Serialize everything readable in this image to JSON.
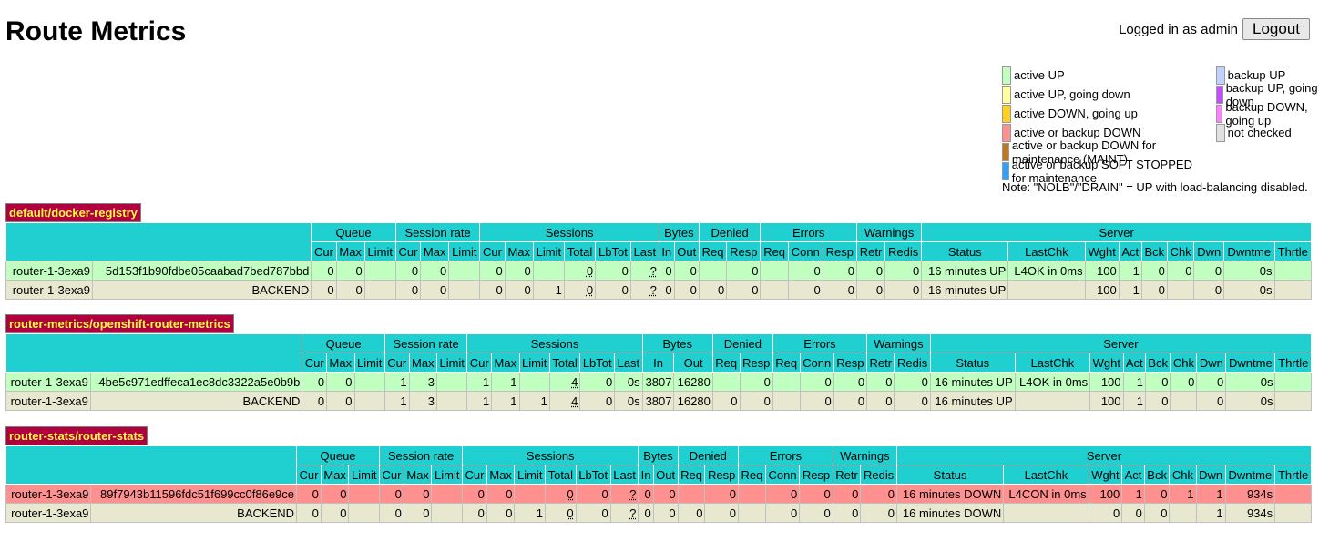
{
  "header": {
    "title": "Route Metrics",
    "login_text": "Logged in as admin",
    "logout_label": "Logout"
  },
  "legend": {
    "left": [
      {
        "label": "active UP",
        "color": "#c0ffc0"
      },
      {
        "label": "active UP, going down",
        "color": "#ffffa0"
      },
      {
        "label": "active DOWN, going up",
        "color": "#ffd020"
      },
      {
        "label": "active or backup DOWN",
        "color": "#ff9090"
      },
      {
        "label": "active or backup DOWN for maintenance (MAINT)",
        "color": "#c07820"
      },
      {
        "label": "active or backup SOFT STOPPED for maintenance",
        "color": "#30a0ff"
      }
    ],
    "right": [
      {
        "label": "backup UP",
        "color": "#c0d0ff"
      },
      {
        "label": "backup UP, going down",
        "color": "#c050ff"
      },
      {
        "label": "backup DOWN, going up",
        "color": "#ff80ff"
      },
      {
        "label": "not checked",
        "color": "#e0e0e0"
      }
    ],
    "note": "Note: \"NOLB\"/\"DRAIN\" = UP with load-balancing disabled."
  },
  "group_headers": [
    "Queue",
    "Session rate",
    "Sessions",
    "Bytes",
    "Denied",
    "Errors",
    "Warnings",
    "Server"
  ],
  "columns": [
    "Cur",
    "Max",
    "Limit",
    "Cur",
    "Max",
    "Limit",
    "Cur",
    "Max",
    "Limit",
    "Total",
    "LbTot",
    "Last",
    "In",
    "Out",
    "Req",
    "Resp",
    "Req",
    "Conn",
    "Resp",
    "Retr",
    "Redis",
    "Status",
    "LastChk",
    "Wght",
    "Act",
    "Bck",
    "Chk",
    "Dwn",
    "Dwntme",
    "Thrtle"
  ],
  "proxies": [
    {
      "name": "default/docker-registry",
      "rows": [
        {
          "kind": "up",
          "c": [
            "router-1-3exa9",
            "5d153f1b90fdbe05caabad7bed787bbd",
            "0",
            "0",
            "",
            "0",
            "0",
            "",
            "0",
            "0",
            "",
            "0",
            "0",
            "?",
            "0",
            "0",
            "",
            "0",
            "",
            "0",
            "0",
            "0",
            "0",
            "16 minutes UP",
            "L4OK in 0ms",
            "100",
            "1",
            "0",
            "0",
            "0",
            "0s",
            ""
          ]
        },
        {
          "kind": "back",
          "c": [
            "router-1-3exa9",
            "BACKEND",
            "0",
            "0",
            "",
            "0",
            "0",
            "",
            "0",
            "0",
            "1",
            "0",
            "0",
            "?",
            "0",
            "0",
            "0",
            "0",
            "",
            "0",
            "0",
            "0",
            "0",
            "16 minutes UP",
            "",
            "100",
            "1",
            "0",
            "",
            "0",
            "0s",
            ""
          ]
        }
      ]
    },
    {
      "name": "router-metrics/openshift-router-metrics",
      "rows": [
        {
          "kind": "up",
          "c": [
            "router-1-3exa9",
            "4be5c971edffeca1ec8dc3322a5e0b9b",
            "0",
            "0",
            "",
            "1",
            "3",
            "",
            "1",
            "1",
            "",
            "4",
            "0",
            "0s",
            "3807",
            "16280",
            "",
            "0",
            "",
            "0",
            "0",
            "0",
            "0",
            "16 minutes UP",
            "L4OK in 0ms",
            "100",
            "1",
            "0",
            "0",
            "0",
            "0s",
            ""
          ]
        },
        {
          "kind": "back",
          "c": [
            "router-1-3exa9",
            "BACKEND",
            "0",
            "0",
            "",
            "1",
            "3",
            "",
            "1",
            "1",
            "1",
            "4",
            "0",
            "0s",
            "3807",
            "16280",
            "0",
            "0",
            "",
            "0",
            "0",
            "0",
            "0",
            "16 minutes UP",
            "",
            "100",
            "1",
            "0",
            "",
            "0",
            "0s",
            ""
          ]
        }
      ]
    },
    {
      "name": "router-stats/router-stats",
      "rows": [
        {
          "kind": "down",
          "c": [
            "router-1-3exa9",
            "89f7943b11596fdc51f699cc0f86e9ce",
            "0",
            "0",
            "",
            "0",
            "0",
            "",
            "0",
            "0",
            "",
            "0",
            "0",
            "?",
            "0",
            "0",
            "",
            "0",
            "",
            "0",
            "0",
            "0",
            "0",
            "16 minutes DOWN",
            "L4CON in 0ms",
            "100",
            "1",
            "0",
            "1",
            "1",
            "934s",
            ""
          ]
        },
        {
          "kind": "back",
          "c": [
            "router-1-3exa9",
            "BACKEND",
            "0",
            "0",
            "",
            "0",
            "0",
            "",
            "0",
            "0",
            "1",
            "0",
            "0",
            "?",
            "0",
            "0",
            "0",
            "0",
            "",
            "0",
            "0",
            "0",
            "0",
            "16 minutes DOWN",
            "",
            "0",
            "0",
            "0",
            "",
            "1",
            "934s",
            ""
          ]
        }
      ]
    }
  ]
}
